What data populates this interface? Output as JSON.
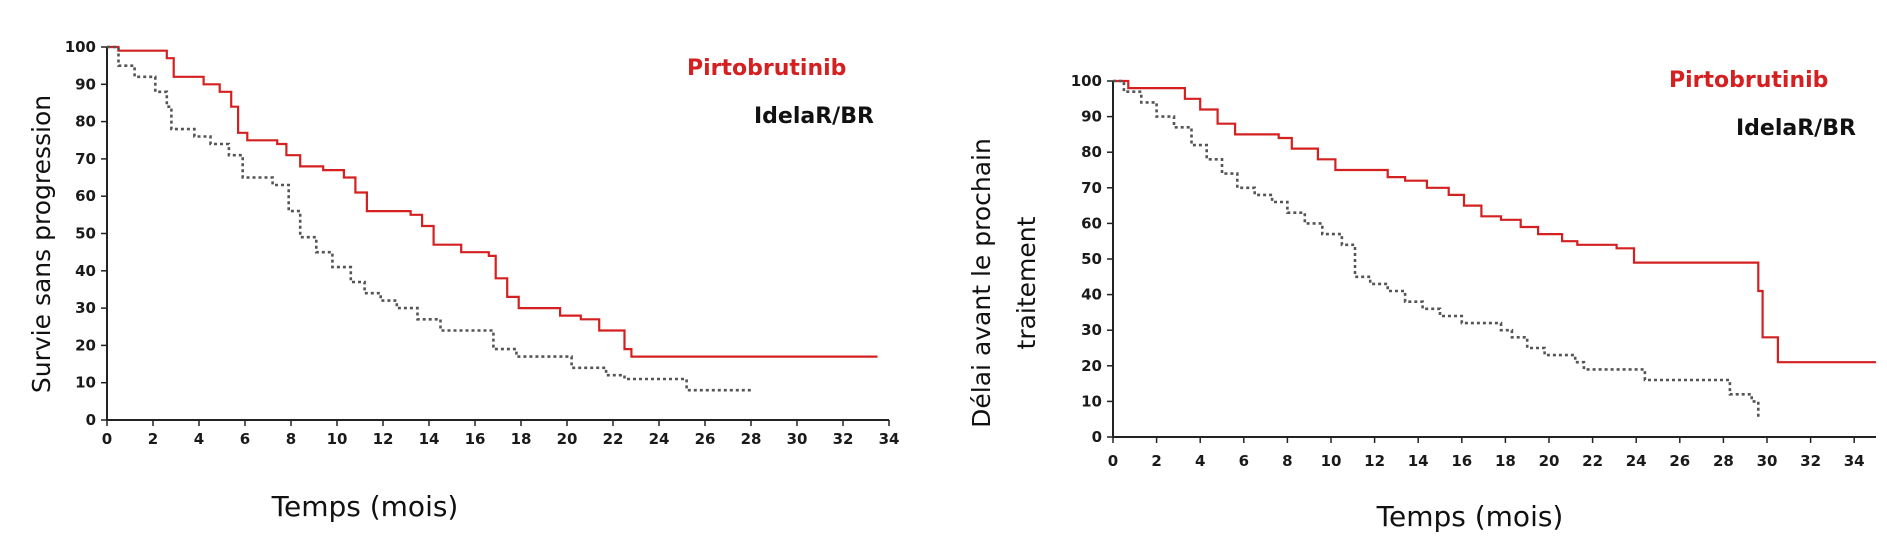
{
  "chart_data": [
    {
      "type": "line",
      "ylabel": "Survie sans progression",
      "xlabel": "Temps (mois)",
      "xlim": [
        0,
        34
      ],
      "ylim": [
        0,
        100
      ],
      "x_ticks": [
        0,
        2,
        4,
        6,
        8,
        10,
        12,
        14,
        16,
        18,
        20,
        22,
        24,
        26,
        28,
        30,
        32,
        34
      ],
      "y_ticks": [
        0,
        10,
        20,
        30,
        40,
        50,
        60,
        70,
        80,
        90,
        100
      ],
      "legend_placement": "top-right",
      "series": [
        {
          "name": "Pirtobrutinib",
          "color": "#d42020",
          "style": "step-solid",
          "points": [
            [
              0,
              100
            ],
            [
              0.5,
              99
            ],
            [
              2.2,
              99
            ],
            [
              2.6,
              97
            ],
            [
              2.9,
              92
            ],
            [
              4.2,
              90
            ],
            [
              4.9,
              88
            ],
            [
              5.4,
              84
            ],
            [
              5.7,
              77
            ],
            [
              6.1,
              75
            ],
            [
              7.4,
              74
            ],
            [
              7.8,
              71
            ],
            [
              8.4,
              68
            ],
            [
              9.4,
              67
            ],
            [
              10.3,
              65
            ],
            [
              10.8,
              61
            ],
            [
              11.3,
              56
            ],
            [
              13.2,
              55
            ],
            [
              13.7,
              52
            ],
            [
              14.2,
              47
            ],
            [
              15.4,
              45
            ],
            [
              16.6,
              44
            ],
            [
              16.9,
              38
            ],
            [
              17.4,
              33
            ],
            [
              17.9,
              30
            ],
            [
              19.7,
              28
            ],
            [
              20.6,
              27
            ],
            [
              21.4,
              24
            ],
            [
              22.3,
              24
            ],
            [
              22.5,
              19
            ],
            [
              22.8,
              17
            ],
            [
              33.5,
              17
            ]
          ]
        },
        {
          "name": "IdelaR/BR",
          "color": "#555555",
          "style": "step-dashed",
          "points": [
            [
              0,
              100
            ],
            [
              0.5,
              95
            ],
            [
              1.2,
              92
            ],
            [
              2.1,
              88
            ],
            [
              2.6,
              84
            ],
            [
              2.8,
              78
            ],
            [
              3.8,
              76
            ],
            [
              4.5,
              74
            ],
            [
              5.3,
              71
            ],
            [
              5.9,
              65
            ],
            [
              7.2,
              63
            ],
            [
              7.9,
              56
            ],
            [
              8.4,
              49
            ],
            [
              9.1,
              45
            ],
            [
              9.8,
              41
            ],
            [
              10.6,
              37
            ],
            [
              11.2,
              34
            ],
            [
              11.9,
              32
            ],
            [
              12.6,
              30
            ],
            [
              13.5,
              27
            ],
            [
              14.5,
              24
            ],
            [
              16.8,
              19
            ],
            [
              17.8,
              17
            ],
            [
              20.2,
              14
            ],
            [
              21.7,
              12
            ],
            [
              22.5,
              11
            ],
            [
              24.8,
              11
            ],
            [
              25.2,
              8
            ],
            [
              28,
              8
            ]
          ]
        }
      ]
    },
    {
      "type": "line",
      "ylabel": "Délai avant le prochain traitement",
      "ylabel_line1": "Délai avant le prochain",
      "ylabel_line2": "traitement",
      "xlabel": "Temps (mois)",
      "xlim": [
        0,
        35
      ],
      "ylim": [
        0,
        100
      ],
      "x_ticks": [
        0,
        2,
        4,
        6,
        8,
        10,
        12,
        14,
        16,
        18,
        20,
        22,
        24,
        26,
        28,
        30,
        32,
        34
      ],
      "y_ticks": [
        0,
        10,
        20,
        30,
        40,
        50,
        60,
        70,
        80,
        90,
        100
      ],
      "legend_placement": "top-right",
      "series": [
        {
          "name": "Pirtobrutinib",
          "color": "#d42020",
          "style": "step-solid",
          "points": [
            [
              0,
              100
            ],
            [
              0.7,
              98
            ],
            [
              2.8,
              98
            ],
            [
              3.3,
              95
            ],
            [
              4.0,
              92
            ],
            [
              4.8,
              88
            ],
            [
              5.6,
              85
            ],
            [
              7.6,
              84
            ],
            [
              8.2,
              81
            ],
            [
              9.4,
              78
            ],
            [
              10.2,
              75
            ],
            [
              12.6,
              73
            ],
            [
              13.4,
              72
            ],
            [
              14.4,
              70
            ],
            [
              15.4,
              68
            ],
            [
              16.1,
              65
            ],
            [
              16.9,
              62
            ],
            [
              17.8,
              61
            ],
            [
              18.7,
              59
            ],
            [
              19.5,
              57
            ],
            [
              20.6,
              55
            ],
            [
              21.3,
              54
            ],
            [
              23.1,
              53
            ],
            [
              23.9,
              49
            ],
            [
              29.4,
              49
            ],
            [
              29.6,
              41
            ],
            [
              29.8,
              28
            ],
            [
              30.5,
              21
            ],
            [
              35,
              21
            ]
          ]
        },
        {
          "name": "IdelaR/BR",
          "color": "#555555",
          "style": "step-dashed",
          "points": [
            [
              0,
              100
            ],
            [
              0.5,
              97
            ],
            [
              1.3,
              94
            ],
            [
              2.0,
              90
            ],
            [
              2.8,
              87
            ],
            [
              3.6,
              82
            ],
            [
              4.3,
              78
            ],
            [
              5.0,
              74
            ],
            [
              5.7,
              70
            ],
            [
              6.5,
              68
            ],
            [
              7.3,
              66
            ],
            [
              8.0,
              63
            ],
            [
              8.8,
              60
            ],
            [
              9.6,
              57
            ],
            [
              10.5,
              54
            ],
            [
              11.1,
              45
            ],
            [
              11.8,
              43
            ],
            [
              12.6,
              41
            ],
            [
              13.4,
              38
            ],
            [
              14.2,
              36
            ],
            [
              15.0,
              34
            ],
            [
              16.0,
              32
            ],
            [
              17.3,
              32
            ],
            [
              17.8,
              30
            ],
            [
              18.3,
              28
            ],
            [
              19.0,
              25
            ],
            [
              19.8,
              23
            ],
            [
              21.2,
              21
            ],
            [
              21.6,
              19
            ],
            [
              24.0,
              19
            ],
            [
              24.4,
              16
            ],
            [
              27.9,
              16
            ],
            [
              28.3,
              12
            ],
            [
              29.3,
              10
            ],
            [
              29.6,
              5
            ]
          ]
        }
      ]
    }
  ]
}
